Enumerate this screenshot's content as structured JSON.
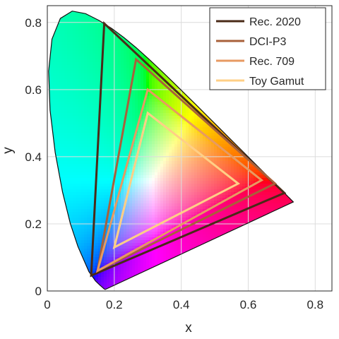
{
  "chart_data": {
    "type": "scatter",
    "title": "",
    "xlabel": "x",
    "ylabel": "y",
    "xlim": [
      0,
      0.85
    ],
    "ylim": [
      0,
      0.85
    ],
    "xticks": [
      "0",
      "0.2",
      "0.4",
      "0.6",
      "0.8"
    ],
    "yticks": [
      "0",
      "0.2",
      "0.4",
      "0.6",
      "0.8"
    ],
    "grid": true,
    "legend_position": "top-right",
    "spectral_locus": {
      "x": [
        0.1741,
        0.1738,
        0.1733,
        0.1726,
        0.1714,
        0.1689,
        0.1644,
        0.1566,
        0.144,
        0.1241,
        0.0913,
        0.0687,
        0.0454,
        0.0235,
        0.0082,
        0.0039,
        0.0139,
        0.0389,
        0.0743,
        0.1142,
        0.1547,
        0.1929,
        0.2296,
        0.2658,
        0.3016,
        0.3373,
        0.3731,
        0.4087,
        0.4441,
        0.4788,
        0.5125,
        0.5448,
        0.5752,
        0.6029,
        0.627,
        0.6482,
        0.6658,
        0.6801,
        0.6915,
        0.7006,
        0.7079,
        0.714,
        0.719,
        0.723,
        0.726,
        0.7347
      ],
      "y": [
        0.005,
        0.0049,
        0.0048,
        0.0048,
        0.0051,
        0.0069,
        0.0109,
        0.0177,
        0.0297,
        0.0578,
        0.1327,
        0.2007,
        0.295,
        0.4127,
        0.5384,
        0.6548,
        0.7502,
        0.812,
        0.8338,
        0.8262,
        0.8059,
        0.7816,
        0.7543,
        0.7243,
        0.6923,
        0.6589,
        0.6245,
        0.5896,
        0.5547,
        0.5202,
        0.4866,
        0.4544,
        0.4242,
        0.3965,
        0.3725,
        0.3514,
        0.334,
        0.3197,
        0.3083,
        0.2993,
        0.292,
        0.2859,
        0.2809,
        0.277,
        0.274,
        0.2653
      ]
    },
    "series": [
      {
        "name": "Rec. 2020",
        "color": "#4a2a17",
        "x": [
          0.708,
          0.17,
          0.131
        ],
        "y": [
          0.292,
          0.797,
          0.046
        ]
      },
      {
        "name": "DCI-P3",
        "color": "#a8613a",
        "x": [
          0.68,
          0.265,
          0.15
        ],
        "y": [
          0.32,
          0.69,
          0.06
        ]
      },
      {
        "name": "Rec. 709",
        "color": "#e79a62",
        "x": [
          0.64,
          0.3,
          0.15
        ],
        "y": [
          0.33,
          0.6,
          0.06
        ]
      },
      {
        "name": "Toy Gamut",
        "color": "#ffcf86",
        "x": [
          0.57,
          0.3,
          0.2
        ],
        "y": [
          0.32,
          0.53,
          0.13
        ]
      }
    ]
  }
}
